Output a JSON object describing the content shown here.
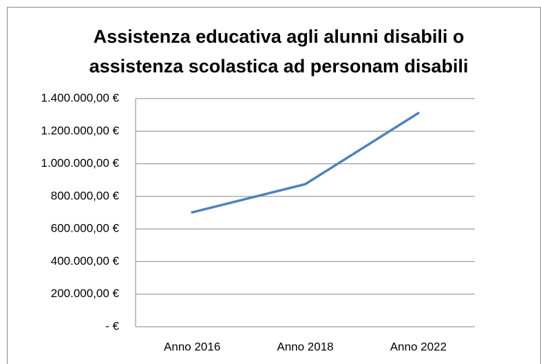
{
  "chart_data": {
    "type": "line",
    "title": [
      "Assistenza educativa agli alunni disabili o",
      "assistenza scolastica ad personam disabili"
    ],
    "categories": [
      "Anno 2016",
      "Anno 2018",
      "Anno 2022"
    ],
    "series": [
      {
        "color": "#4f81bd",
        "values": [
          702000,
          875000,
          1311000
        ]
      }
    ],
    "ylim": [
      0,
      1400000
    ],
    "yticks": [
      {
        "value": 0,
        "label": "-  €"
      },
      {
        "value": 200000,
        "label": "200.000,00 €"
      },
      {
        "value": 400000,
        "label": "400.000,00 €"
      },
      {
        "value": 600000,
        "label": "600.000,00 €"
      },
      {
        "value": 800000,
        "label": "800.000,00 €"
      },
      {
        "value": 1000000,
        "label": "1.000.000,00 €"
      },
      {
        "value": 1200000,
        "label": "1.200.000,00 €"
      },
      {
        "value": 1400000,
        "label": "1.400.000,00 €"
      }
    ],
    "grid": true
  }
}
